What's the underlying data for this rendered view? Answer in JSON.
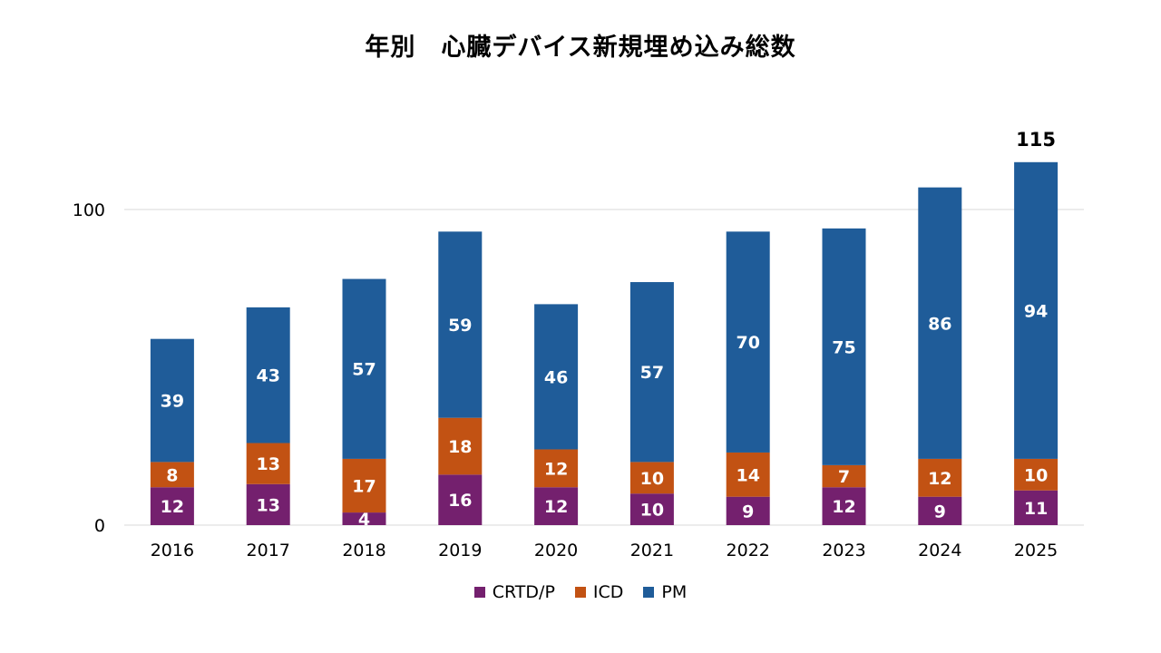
{
  "chart_data": {
    "type": "bar",
    "stacked": true,
    "title": "年別　心臓デバイス新規埋め込み総数",
    "categories": [
      "2016",
      "2017",
      "2018",
      "2019",
      "2020",
      "2021",
      "2022",
      "2023",
      "2024",
      "2025"
    ],
    "series": [
      {
        "name": "CRTD/P",
        "color": "#74206E",
        "values": [
          12,
          13,
          4,
          16,
          12,
          10,
          9,
          12,
          9,
          11
        ]
      },
      {
        "name": "ICD",
        "color": "#C25213",
        "values": [
          8,
          13,
          17,
          18,
          12,
          10,
          14,
          7,
          12,
          10
        ]
      },
      {
        "name": "PM",
        "color": "#1F5C99",
        "values": [
          39,
          43,
          57,
          59,
          46,
          57,
          70,
          75,
          86,
          94
        ]
      }
    ],
    "yticks": [
      0,
      100
    ],
    "ylim": [
      0,
      115
    ],
    "grid": true,
    "legend_position": "bottom",
    "annotations": [
      {
        "category": "2025",
        "text": "115"
      }
    ]
  }
}
